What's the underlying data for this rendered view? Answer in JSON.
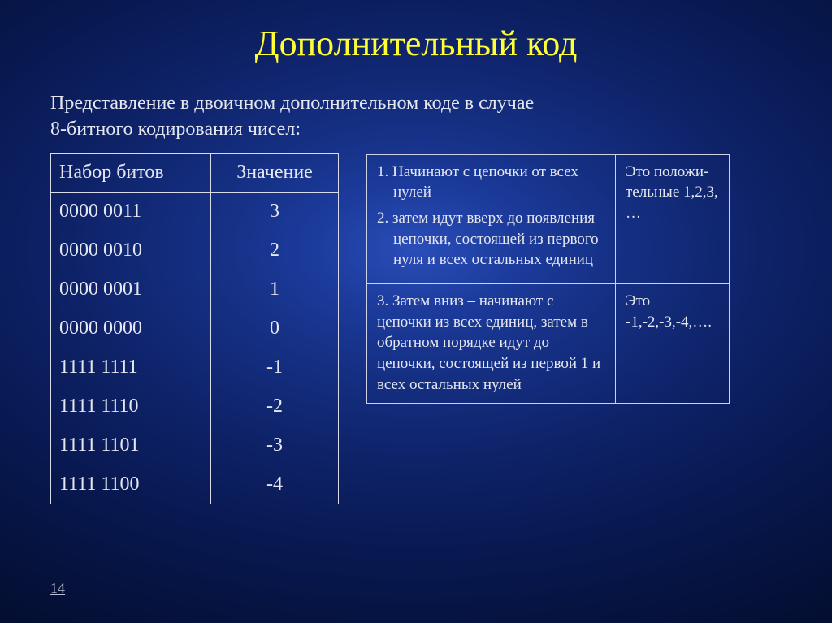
{
  "colors": {
    "title": "#ffff33",
    "body": "#e4e6f0",
    "pagenum": "#b9bed6"
  },
  "title": "Дополнительный код",
  "subtitle_line1": "Представление в двоичном дополнительном коде в случае",
  "subtitle_line2": "8-битного кодирования чисел:",
  "bit_table": {
    "headers": [
      "Набор битов",
      "Значение"
    ],
    "rows": [
      [
        "0000 0011",
        "3"
      ],
      [
        "0000 0010",
        "2"
      ],
      [
        "0000 0001",
        "1"
      ],
      [
        "0000 0000",
        "0"
      ],
      [
        "1111 1111",
        "-1"
      ],
      [
        "1111 1110",
        "-2"
      ],
      [
        "1111 1101",
        "-3"
      ],
      [
        "1111 1100",
        "-4"
      ]
    ]
  },
  "info1_a_prefix": "1. ",
  "info1_a_text": "Начинают с цепочки от всех нулей",
  "info1_b_prefix": "2. ",
  "info1_b_text": "затем идут вверх до появления цепочки, состоящей из первого нуля и всех остальных единиц",
  "info1_right": "Это положи-тельные 1,2,3, …",
  "info2_left": "3. Затем вниз – начинают с цепочки из всех единиц, затем в обратном порядке идут до цепочки, состоящей из первой 1 и всех остальных нулей",
  "info2_right": "Это -1,-2,-3,-4,….",
  "page_number": "14"
}
